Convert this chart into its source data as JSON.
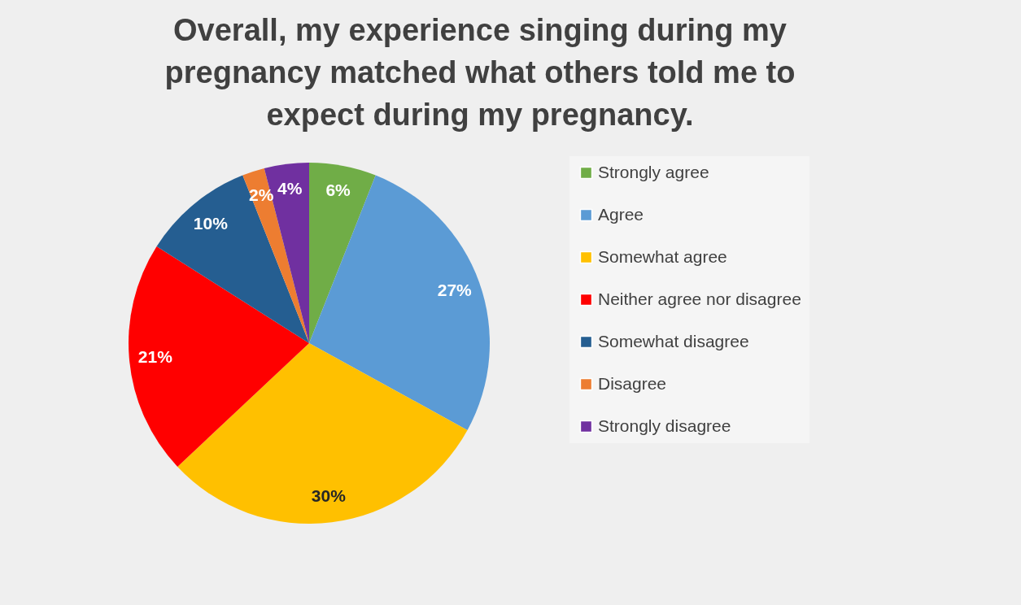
{
  "chart_data": {
    "type": "pie",
    "title": "Overall, my experience singing during my pregnancy matched what others told me to expect during my pregnancy.",
    "categories": [
      "Strongly agree",
      "Agree",
      "Somewhat agree",
      "Neither agree nor disagree",
      "Somewhat disagree",
      "Disagree",
      "Strongly disagree"
    ],
    "values": [
      6,
      27,
      30,
      21,
      10,
      2,
      4
    ],
    "colors": [
      "#70ad47",
      "#5b9bd5",
      "#ffc000",
      "#ff0000",
      "#255e91",
      "#ed7d31",
      "#7030a0"
    ],
    "value_labels": [
      "6%",
      "27%",
      "30%",
      "21%",
      "10%",
      "2%",
      "4%"
    ],
    "legend": "right"
  }
}
